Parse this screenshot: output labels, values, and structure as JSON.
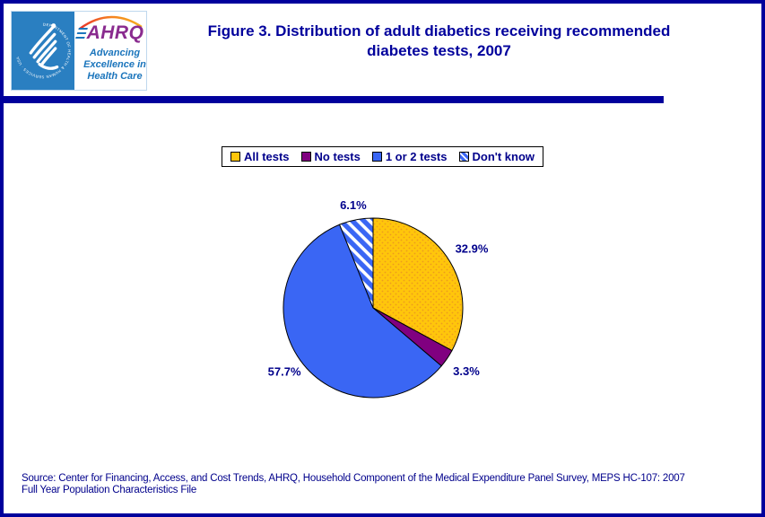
{
  "page": {
    "background": "#FFFFFF",
    "border_color": "#00009C"
  },
  "header": {
    "title": "Figure 3. Distribution of adult diabetics receiving recommended diabetes tests, 2007",
    "logo": {
      "hhs_ring_text": "DEPARTMENT OF HEALTH & HUMAN SERVICES · USA",
      "ahrq_acronym": "AHRQ",
      "ahrq_tagline": "Advancing Excellence in Health Care"
    }
  },
  "chart_data": {
    "type": "pie",
    "title": "Figure 3. Distribution of adult diabetics receiving recommended diabetes tests, 2007",
    "categories": [
      "All tests",
      "No tests",
      "1 or 2 tests",
      "Don't know"
    ],
    "values": [
      32.9,
      3.3,
      57.7,
      6.1
    ],
    "labels": [
      "32.9%",
      "3.3%",
      "57.7%",
      "6.1%"
    ],
    "unit": "%",
    "start_angle_deg": 0,
    "direction": "clockwise",
    "legend_position": "top-center",
    "slice_outline": "#000000",
    "label_color": "#00008B",
    "slice_styles": [
      {
        "fill": "#FFC60B",
        "pattern": "dots",
        "accent": "#ED9B1E"
      },
      {
        "fill": "#800080",
        "pattern": "solid"
      },
      {
        "fill": "#3A66F4",
        "pattern": "solid"
      },
      {
        "fill": "#3A66F4",
        "pattern": "diagonal-hatch",
        "accent": "#FFFFFF"
      }
    ]
  },
  "footer": {
    "source_line1": "Source: Center for Financing, Access, and Cost Trends, AHRQ, Household Component of the Medical Expenditure Panel Survey, MEPS HC-107: 2007",
    "source_line2": "Full Year Population Characteristics File"
  },
  "colors": {
    "navy": "#00009C",
    "hhs_teal": "#2A7FC1",
    "ahrq_purple": "#8A2B8F",
    "ahrq_blue": "#1B75BC",
    "arc_orange": "#F58220"
  }
}
